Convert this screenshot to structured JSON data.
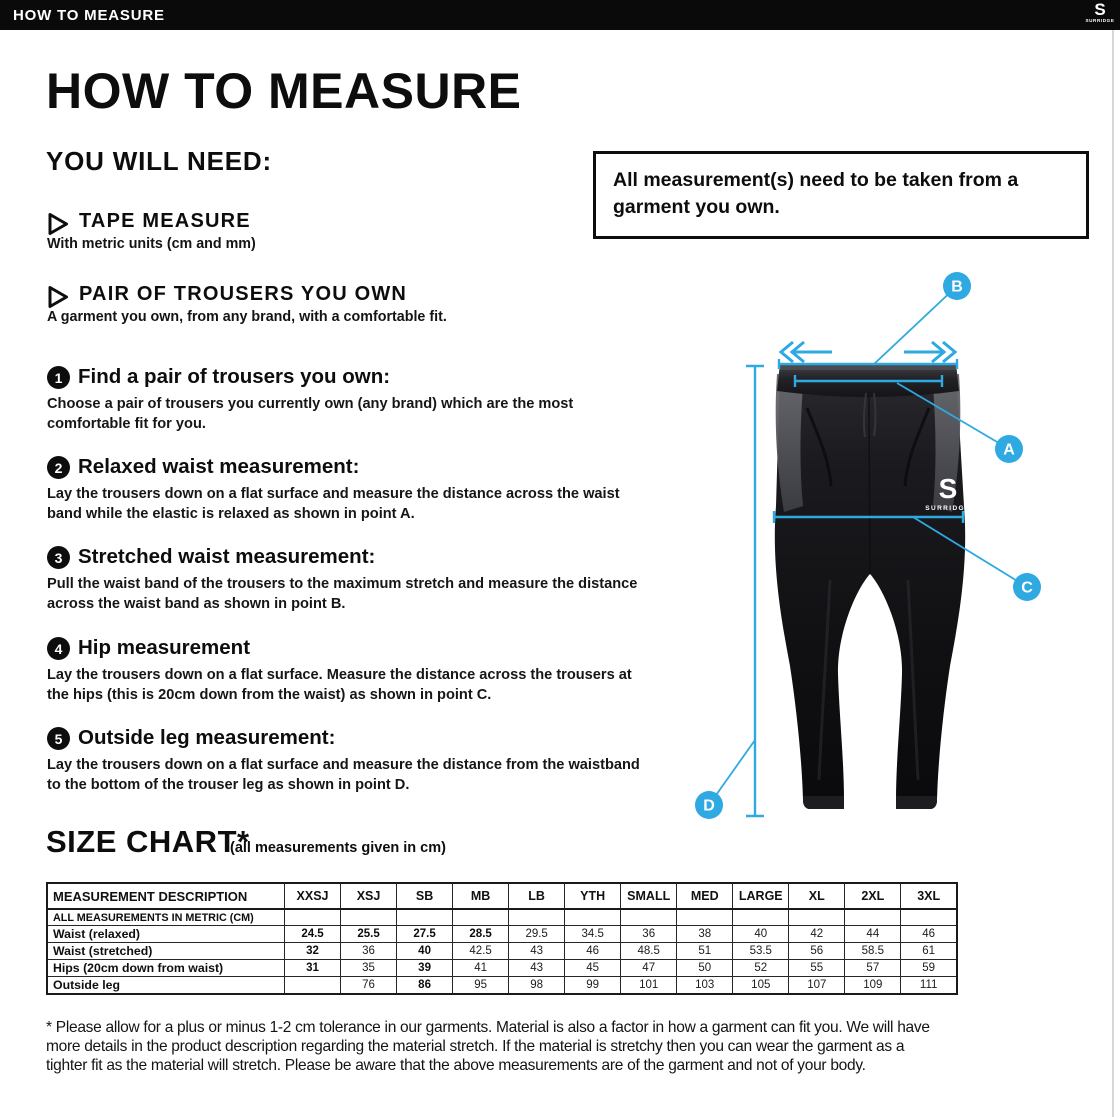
{
  "colors": {
    "accent_blue": "#2fa9e1",
    "header_bg": "#0a0a0a",
    "text": "#111111",
    "garment_black": "#141417",
    "panel_gray": "#5a5b60"
  },
  "header": {
    "title": "HOW TO MEASURE",
    "brand": {
      "letter": "S",
      "name": "SURRIDGE"
    }
  },
  "page": {
    "title": "HOW TO MEASURE",
    "you_will_need": "YOU WILL NEED:",
    "note": "All measurement(s) need to be taken from a garment you own.",
    "needs": [
      {
        "label": "TAPE MEASURE",
        "sub": "With metric units (cm and mm)"
      },
      {
        "label": "PAIR OF TROUSERS YOU OWN",
        "sub": "A garment you own, from any brand, with a comfortable fit."
      }
    ],
    "steps": [
      {
        "num": "1",
        "heading": "Find a pair of trousers you own:",
        "body": "Choose a pair of trousers you currently own (any brand) which are the most comfortable fit for you."
      },
      {
        "num": "2",
        "heading": "Relaxed waist measurement:",
        "body": "Lay the trousers down on a flat surface and measure the distance across the waist band while the elastic is relaxed as shown in point A."
      },
      {
        "num": "3",
        "heading": "Stretched waist measurement:",
        "body": "Pull the waist band of the trousers to the maximum stretch and measure the distance across the waist band as shown in point B."
      },
      {
        "num": "4",
        "heading": "Hip measurement",
        "body": "Lay the trousers down on a flat surface. Measure the distance across the trousers at the hips (this is 20cm down from the waist)  as shown in point C."
      },
      {
        "num": "5",
        "heading": "Outside leg measurement:",
        "body": "Lay the trousers down on a flat surface and measure the distance from the waistband to the bottom of the trouser  leg as shown in point D."
      }
    ]
  },
  "figure": {
    "point_labels": [
      "A",
      "B",
      "C",
      "D"
    ],
    "garment_logo": {
      "letter": "S",
      "name": "SURRIDGE"
    }
  },
  "size_chart": {
    "heading": "SIZE CHART*",
    "subheading": "(all measurements given in cm)",
    "type": "table",
    "columns": [
      "MEASUREMENT DESCRIPTION",
      "XXSJ",
      "XSJ",
      "SB",
      "MB",
      "LB",
      "YTH",
      "SMALL",
      "MED",
      "LARGE",
      "XL",
      "2XL",
      "3XL"
    ],
    "rows": [
      {
        "label": "ALL MEASUREMENTS IN METRIC (CM)",
        "metric_note": true,
        "values": [
          "",
          "",
          "",
          "",
          "",
          "",
          "",
          "",
          "",
          "",
          "",
          ""
        ],
        "bold": []
      },
      {
        "label": "Waist (relaxed)",
        "metric_note": false,
        "values": [
          "24.5",
          "25.5",
          "27.5",
          "28.5",
          "29.5",
          "34.5",
          "36",
          "38",
          "40",
          "42",
          "44",
          "46"
        ],
        "bold": [
          0,
          1,
          2,
          3
        ]
      },
      {
        "label": "Waist (stretched)",
        "metric_note": false,
        "values": [
          "32",
          "36",
          "40",
          "42.5",
          "43",
          "46",
          "48.5",
          "51",
          "53.5",
          "56",
          "58.5",
          "61"
        ],
        "bold": [
          0,
          2
        ]
      },
      {
        "label": "Hips (20cm down from waist)",
        "metric_note": false,
        "values": [
          "31",
          "35",
          "39",
          "41",
          "43",
          "45",
          "47",
          "50",
          "52",
          "55",
          "57",
          "59"
        ],
        "bold": [
          0,
          2
        ]
      },
      {
        "label": "Outside leg",
        "metric_note": false,
        "values": [
          "",
          "76",
          "86",
          "95",
          "98",
          "99",
          "101",
          "103",
          "105",
          "107",
          "109",
          "111"
        ],
        "bold": [
          2
        ]
      }
    ]
  },
  "footnote": {
    "lines": [
      "* Please allow for a plus or minus 1-2 cm tolerance in our garments. Material is also a factor in how a garment can fit you. We will have",
      "more details in the product description regarding the material stretch.  If the material is stretchy then you can wear the garment as a",
      "tighter fit as the material will stretch.  Please be aware that the above measurements are of the garment and not of your body."
    ]
  }
}
